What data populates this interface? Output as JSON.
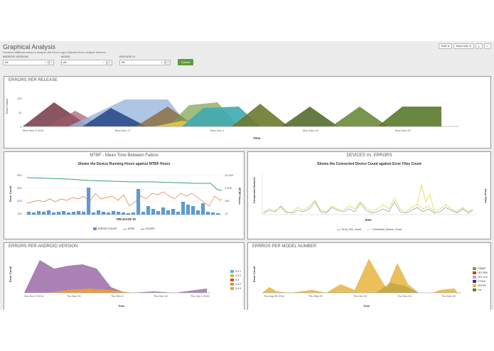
{
  "header": {
    "title": "Graphical Analysis",
    "subtitle": "Provides different views to analyze the Error Logs Collected from multiple devices",
    "edit_label": "Edit",
    "more_info_label": "More Info"
  },
  "filters": [
    {
      "label": "ANDROID VERSION:",
      "value": "All"
    },
    {
      "label": "MODEL",
      "value": "All"
    },
    {
      "label": "RELEASE ID",
      "value": "All"
    }
  ],
  "submit_label": "Submit",
  "panels": {
    "errors_per_release": {
      "title": "ERRORS PER RELEASE",
      "ylabel": "Error Count",
      "xlabel": "Time",
      "yticks": [
        "100",
        "10",
        "1"
      ],
      "xticks": [
        "Mon Nov 3\n2014",
        "Mon Nov 17",
        "Mon Dec 1",
        "Mon Dec 15",
        "Mon Dec 29"
      ]
    },
    "mtbf": {
      "title": "MTBF - Mean Time Between Failure",
      "subtitle": "Shows the Device Running Hours against MTBF Hours",
      "ylabel": "Error Count",
      "y2label": "MTBF Hours",
      "xlabel": "RELEASE ID",
      "yticks": [
        "400",
        "300",
        "200",
        "100"
      ],
      "y2ticks": [
        "10,000",
        "1,000",
        "100",
        "10"
      ],
      "legend": [
        "ERROR COUNT",
        "MTBF",
        "HOURS"
      ]
    },
    "devices_vs_errors": {
      "title": "DEVICES Vs. ERRORS",
      "subtitle": "Shows the Connected Device Count against Error Files Count",
      "ylabel": "Connected Devices",
      "y2label": "Error Files",
      "xlabel": "_time",
      "legend": [
        "Error_File_Count",
        "Connected_Device_Count"
      ]
    },
    "per_android": {
      "title": "ERRORS PER ANDROID VERSION",
      "ylabel": "Error Count",
      "xlabel": "Time",
      "xticks": [
        "Sun Nov 9\n2014",
        "Thu Nov 20",
        "Thu Dec 4",
        "Thu Dec 18",
        "Thu Jan 1\n2015"
      ],
      "legend": [
        "4.0.1",
        "4.2.2",
        "4.3",
        "4.4.2",
        "4.4.4"
      ]
    },
    "per_model": {
      "title": "ERRROS PER MODEL NUMBER",
      "ylabel": "Error Count",
      "xlabel": "Time",
      "xticks": [
        "Thu Aug 28\n2014",
        "Thu Sep 25",
        "Thu Oct 23",
        "Thu Nov 20",
        "Thu Dec 18"
      ],
      "legend": [
        "CR660",
        "LEX 800",
        "LEX L10",
        "VT918",
        "VDG31",
        "n/a"
      ]
    }
  },
  "colors": {
    "accent_green": "#5a9e3a",
    "bar_blue": "#5b9bd5",
    "mtbf_orange": "#e8763a",
    "hours_green": "#3aa07a"
  }
}
